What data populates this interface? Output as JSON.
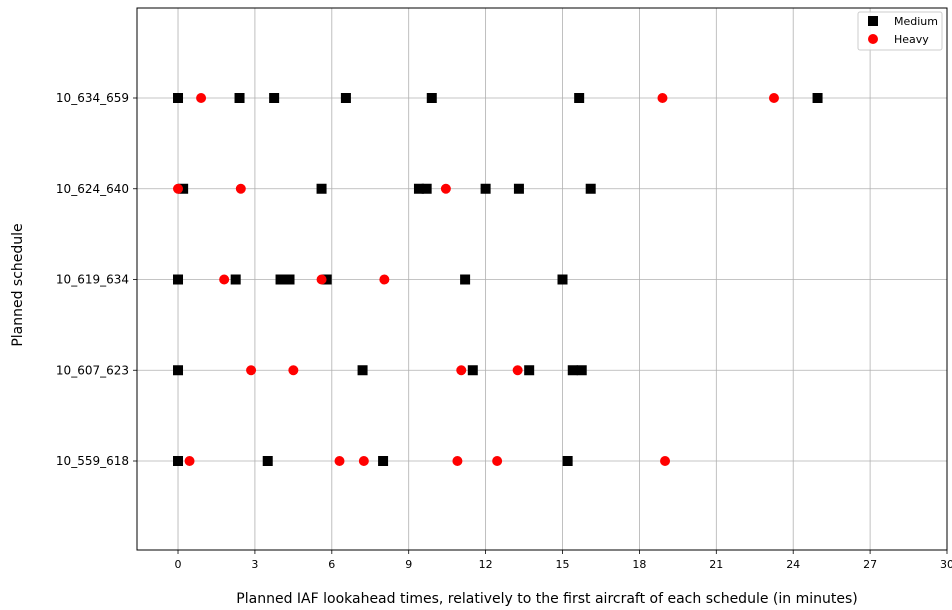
{
  "chart_data": {
    "type": "scatter",
    "xlabel": "Planned IAF lookahead times, relatively to the first aircraft of each schedule (in minutes)",
    "ylabel": "Planned schedule",
    "xlim": [
      -1.6,
      30
    ],
    "xticks": [
      0,
      3,
      6,
      9,
      12,
      15,
      18,
      21,
      24,
      27,
      30
    ],
    "categories": [
      "10_559_618",
      "10_607_623",
      "10_619_634",
      "10_624_640",
      "10_634_659"
    ],
    "grid": true,
    "legend_position": "top-right",
    "series": [
      {
        "name": "Medium",
        "marker": "square",
        "color": "#000000",
        "points": [
          {
            "category": "10_634_659",
            "x": [
              0,
              2.4,
              3.75,
              6.55,
              9.9,
              15.65,
              24.95
            ]
          },
          {
            "category": "10_624_640",
            "x": [
              0.2,
              5.6,
              9.4,
              9.7,
              12.0,
              13.3,
              16.1
            ]
          },
          {
            "category": "10_619_634",
            "x": [
              0,
              2.25,
              4.0,
              4.35,
              5.8,
              11.2,
              15.0
            ]
          },
          {
            "category": "10_607_623",
            "x": [
              0,
              7.2,
              11.5,
              13.7,
              15.4,
              15.75
            ]
          },
          {
            "category": "10_559_618",
            "x": [
              0,
              3.5,
              8.0,
              15.2
            ]
          }
        ]
      },
      {
        "name": "Heavy",
        "marker": "circle",
        "color": "#ff0000",
        "points": [
          {
            "category": "10_634_659",
            "x": [
              0.9,
              18.9,
              23.25
            ]
          },
          {
            "category": "10_624_640",
            "x": [
              0,
              2.45,
              10.45
            ]
          },
          {
            "category": "10_619_634",
            "x": [
              1.8,
              5.6,
              8.05
            ]
          },
          {
            "category": "10_607_623",
            "x": [
              2.85,
              4.5,
              11.05,
              13.25
            ]
          },
          {
            "category": "10_559_618",
            "x": [
              0.45,
              6.3,
              7.25,
              10.9,
              12.45,
              19.0
            ]
          }
        ]
      }
    ]
  }
}
